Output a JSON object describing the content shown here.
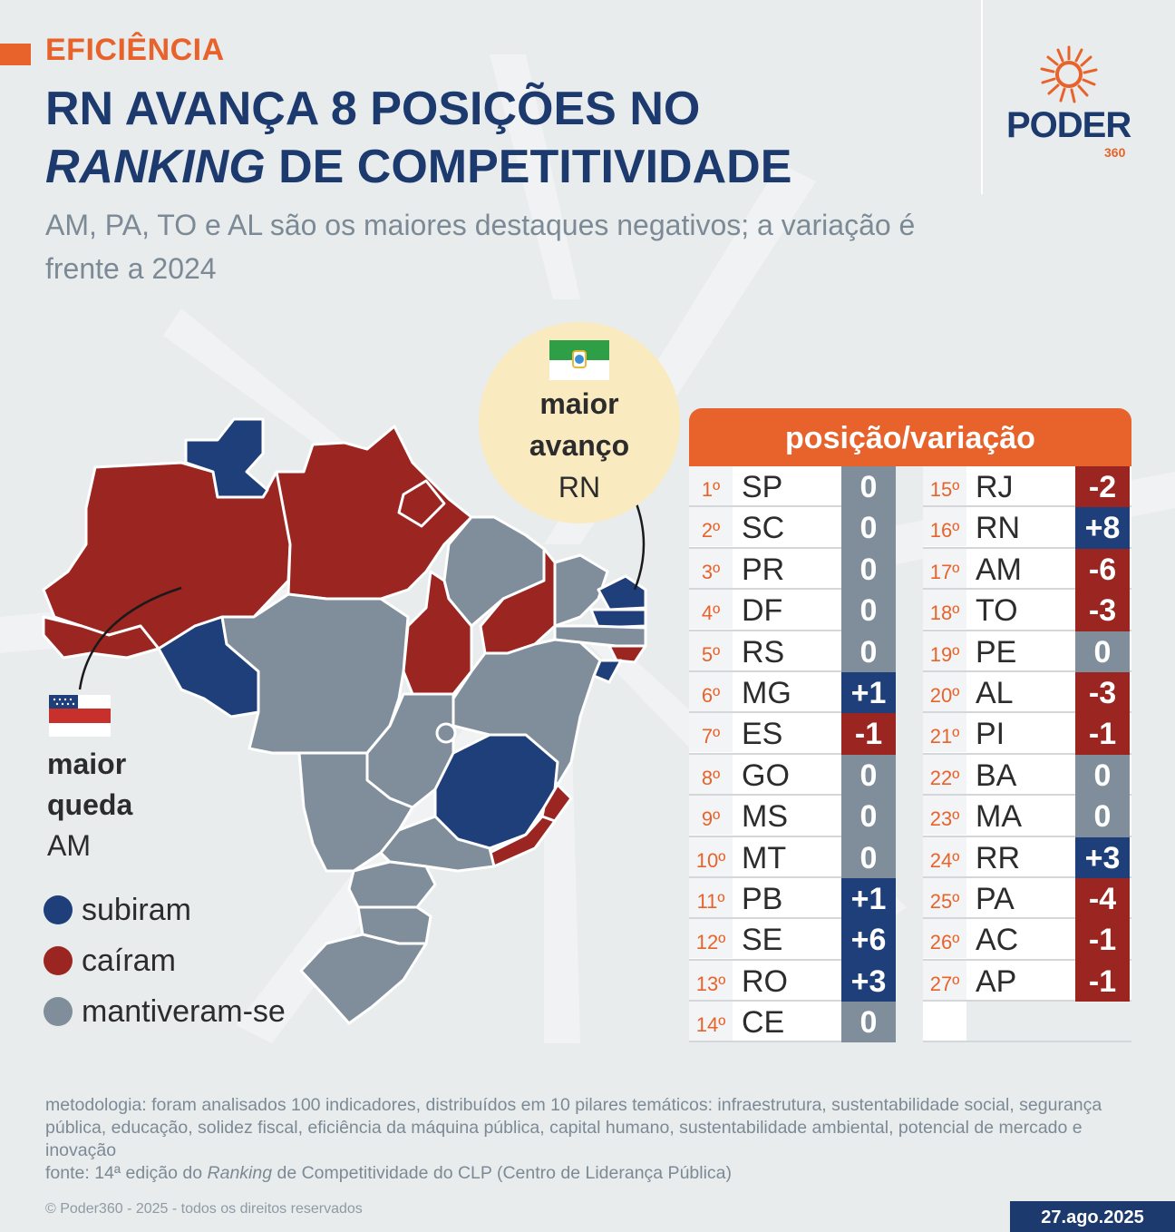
{
  "header": {
    "kicker": "EFICIÊNCIA",
    "title_line1": "RN AVANÇA 8 POSIÇÕES NO",
    "title_line2_italic": "RANKING",
    "title_line2_rest": " DE COMPETITIVIDADE",
    "subtitle": "AM, PA, TO e AL são os maiores destaques negativos; a variação é frente a 2024"
  },
  "logo": {
    "name": "PODER",
    "number": "360"
  },
  "highlights": {
    "rise_line1": "maior",
    "rise_line2": "avanço",
    "rise_state": "RN",
    "fall_line1": "maior",
    "fall_line2": "queda",
    "fall_state": "AM"
  },
  "legend": [
    {
      "label": "subiram",
      "color": "#1f3f7a"
    },
    {
      "label": "caíram",
      "color": "#9b2520"
    },
    {
      "label": "mantiveram-se",
      "color": "#7f8e9a"
    }
  ],
  "colors": {
    "up": "#1f3f7a",
    "down": "#9b2520",
    "same": "#7f8e9a",
    "accent": "#e8632b",
    "navy": "#1d3a6e"
  },
  "table": {
    "header": "posição/variação",
    "left": [
      {
        "rank": "1º",
        "uf": "SP",
        "var": "0",
        "trend": "same"
      },
      {
        "rank": "2º",
        "uf": "SC",
        "var": "0",
        "trend": "same"
      },
      {
        "rank": "3º",
        "uf": "PR",
        "var": "0",
        "trend": "same"
      },
      {
        "rank": "4º",
        "uf": "DF",
        "var": "0",
        "trend": "same"
      },
      {
        "rank": "5º",
        "uf": "RS",
        "var": "0",
        "trend": "same"
      },
      {
        "rank": "6º",
        "uf": "MG",
        "var": "+1",
        "trend": "up"
      },
      {
        "rank": "7º",
        "uf": "ES",
        "var": "-1",
        "trend": "down"
      },
      {
        "rank": "8º",
        "uf": "GO",
        "var": "0",
        "trend": "same"
      },
      {
        "rank": "9º",
        "uf": "MS",
        "var": "0",
        "trend": "same"
      },
      {
        "rank": "10º",
        "uf": "MT",
        "var": "0",
        "trend": "same"
      },
      {
        "rank": "11º",
        "uf": "PB",
        "var": "+1",
        "trend": "up"
      },
      {
        "rank": "12º",
        "uf": "SE",
        "var": "+6",
        "trend": "up"
      },
      {
        "rank": "13º",
        "uf": "RO",
        "var": "+3",
        "trend": "up"
      },
      {
        "rank": "14º",
        "uf": "CE",
        "var": "0",
        "trend": "same"
      }
    ],
    "right": [
      {
        "rank": "15º",
        "uf": "RJ",
        "var": "-2",
        "trend": "down"
      },
      {
        "rank": "16º",
        "uf": "RN",
        "var": "+8",
        "trend": "up"
      },
      {
        "rank": "17º",
        "uf": "AM",
        "var": "-6",
        "trend": "down"
      },
      {
        "rank": "18º",
        "uf": "TO",
        "var": "-3",
        "trend": "down"
      },
      {
        "rank": "19º",
        "uf": "PE",
        "var": "0",
        "trend": "same"
      },
      {
        "rank": "20º",
        "uf": "AL",
        "var": "-3",
        "trend": "down"
      },
      {
        "rank": "21º",
        "uf": "PI",
        "var": "-1",
        "trend": "down"
      },
      {
        "rank": "22º",
        "uf": "BA",
        "var": "0",
        "trend": "same"
      },
      {
        "rank": "23º",
        "uf": "MA",
        "var": "0",
        "trend": "same"
      },
      {
        "rank": "24º",
        "uf": "RR",
        "var": "+3",
        "trend": "up"
      },
      {
        "rank": "25º",
        "uf": "PA",
        "var": "-4",
        "trend": "down"
      },
      {
        "rank": "26º",
        "uf": "AC",
        "var": "-1",
        "trend": "down"
      },
      {
        "rank": "27º",
        "uf": "AP",
        "var": "-1",
        "trend": "down"
      }
    ]
  },
  "footer": {
    "methodology": "metodologia: foram analisados 100 indicadores, distribuídos em 10 pilares temáticos: infraestrutura, sustentabilidade social, segurança pública, educação, solidez fiscal, eficiência da máquina pública, capital humano, sustentabilidade ambiental, potencial de mercado e inovação",
    "source_prefix": "fonte: 14ª edição do ",
    "source_italic": "Ranking",
    "source_suffix": " de Competitividade do CLP (Centro de Liderança Pública)",
    "copyright": "© Poder360 - 2025 - todos os direitos reservados",
    "date": "27.ago.2025"
  }
}
